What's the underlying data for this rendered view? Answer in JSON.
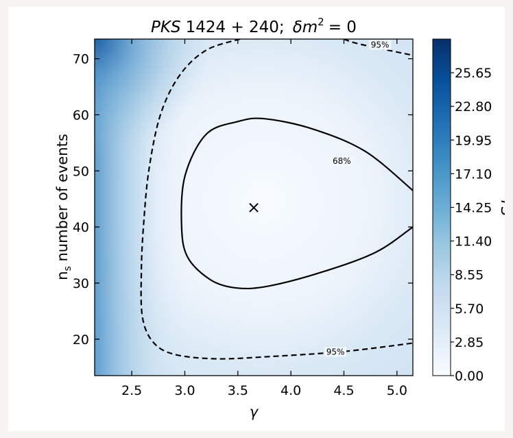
{
  "chart_data": {
    "type": "heatmap",
    "title": "PKS 1424+240;  δm² = 0",
    "title_parts": {
      "source": "PKS",
      "numbers": "1424 + 240;",
      "delta": "δm",
      "exponent": "2",
      "eq": "= 0"
    },
    "xlabel": "γ",
    "ylabel_main": "n",
    "ylabel_sub": "s",
    "ylabel_rest": " number of events",
    "colorbar_label": "TS",
    "xlim": [
      2.15,
      5.15
    ],
    "ylim": [
      13.5,
      73.5
    ],
    "xticks": [
      2.5,
      3.0,
      3.5,
      4.0,
      4.5,
      5.0
    ],
    "xtick_labels": [
      "2.5",
      "3.0",
      "3.5",
      "4.0",
      "4.5",
      "5.0"
    ],
    "yticks": [
      20,
      30,
      40,
      50,
      60,
      70
    ],
    "ytick_labels": [
      "20",
      "30",
      "40",
      "50",
      "60",
      "70"
    ],
    "colorbar_range": [
      0,
      28.5
    ],
    "colorbar_ticks": [
      0.0,
      2.85,
      5.7,
      8.55,
      11.4,
      14.25,
      17.1,
      19.95,
      22.8,
      25.65
    ],
    "colorbar_tick_labels": [
      "0.00",
      "2.85",
      "5.70",
      "8.55",
      "11.40",
      "14.25",
      "17.10",
      "19.95",
      "22.80",
      "25.65"
    ],
    "colormap": [
      "#f7fbff",
      "#deebf7",
      "#c6dbef",
      "#9ecae1",
      "#6baed6",
      "#4292c6",
      "#2171b5",
      "#08519c",
      "#08306b"
    ],
    "best_fit": {
      "gamma": 3.65,
      "ns": 43.5,
      "marker": "×"
    },
    "contours": [
      {
        "level": "68%",
        "style": "solid",
        "points": [
          [
            5.15,
            46.5
          ],
          [
            4.7,
            53.5
          ],
          [
            4.2,
            57.5
          ],
          [
            3.75,
            59.3
          ],
          [
            3.5,
            58.8
          ],
          [
            3.2,
            56.5
          ],
          [
            3.0,
            49
          ],
          [
            2.97,
            40
          ],
          [
            3.03,
            34.5
          ],
          [
            3.25,
            30.5
          ],
          [
            3.5,
            29.1
          ],
          [
            3.8,
            29.5
          ],
          [
            4.3,
            32
          ],
          [
            4.8,
            35.5
          ],
          [
            5.15,
            40
          ]
        ],
        "label_at": [
          4.48,
          51.5
        ]
      },
      {
        "level": "95%",
        "style": "dashed",
        "points": [
          [
            3.52,
            73.5
          ],
          [
            3.2,
            71.5
          ],
          [
            2.95,
            67
          ],
          [
            2.77,
            60
          ],
          [
            2.66,
            50
          ],
          [
            2.61,
            40
          ],
          [
            2.59,
            32
          ],
          [
            2.6,
            24
          ],
          [
            2.7,
            19.5
          ],
          [
            2.9,
            17.3
          ],
          [
            3.3,
            16.5
          ],
          [
            3.8,
            16.9
          ],
          [
            4.5,
            17.8
          ],
          [
            5.15,
            19.3
          ]
        ],
        "label_at": [
          4.42,
          17.5
        ]
      },
      {
        "level": "95%",
        "style": "dashed",
        "points": [
          [
            4.5,
            73.5
          ],
          [
            4.65,
            72.6
          ],
          [
            5.15,
            70.6
          ]
        ],
        "label_at": [
          4.84,
          72.2
        ]
      }
    ]
  }
}
